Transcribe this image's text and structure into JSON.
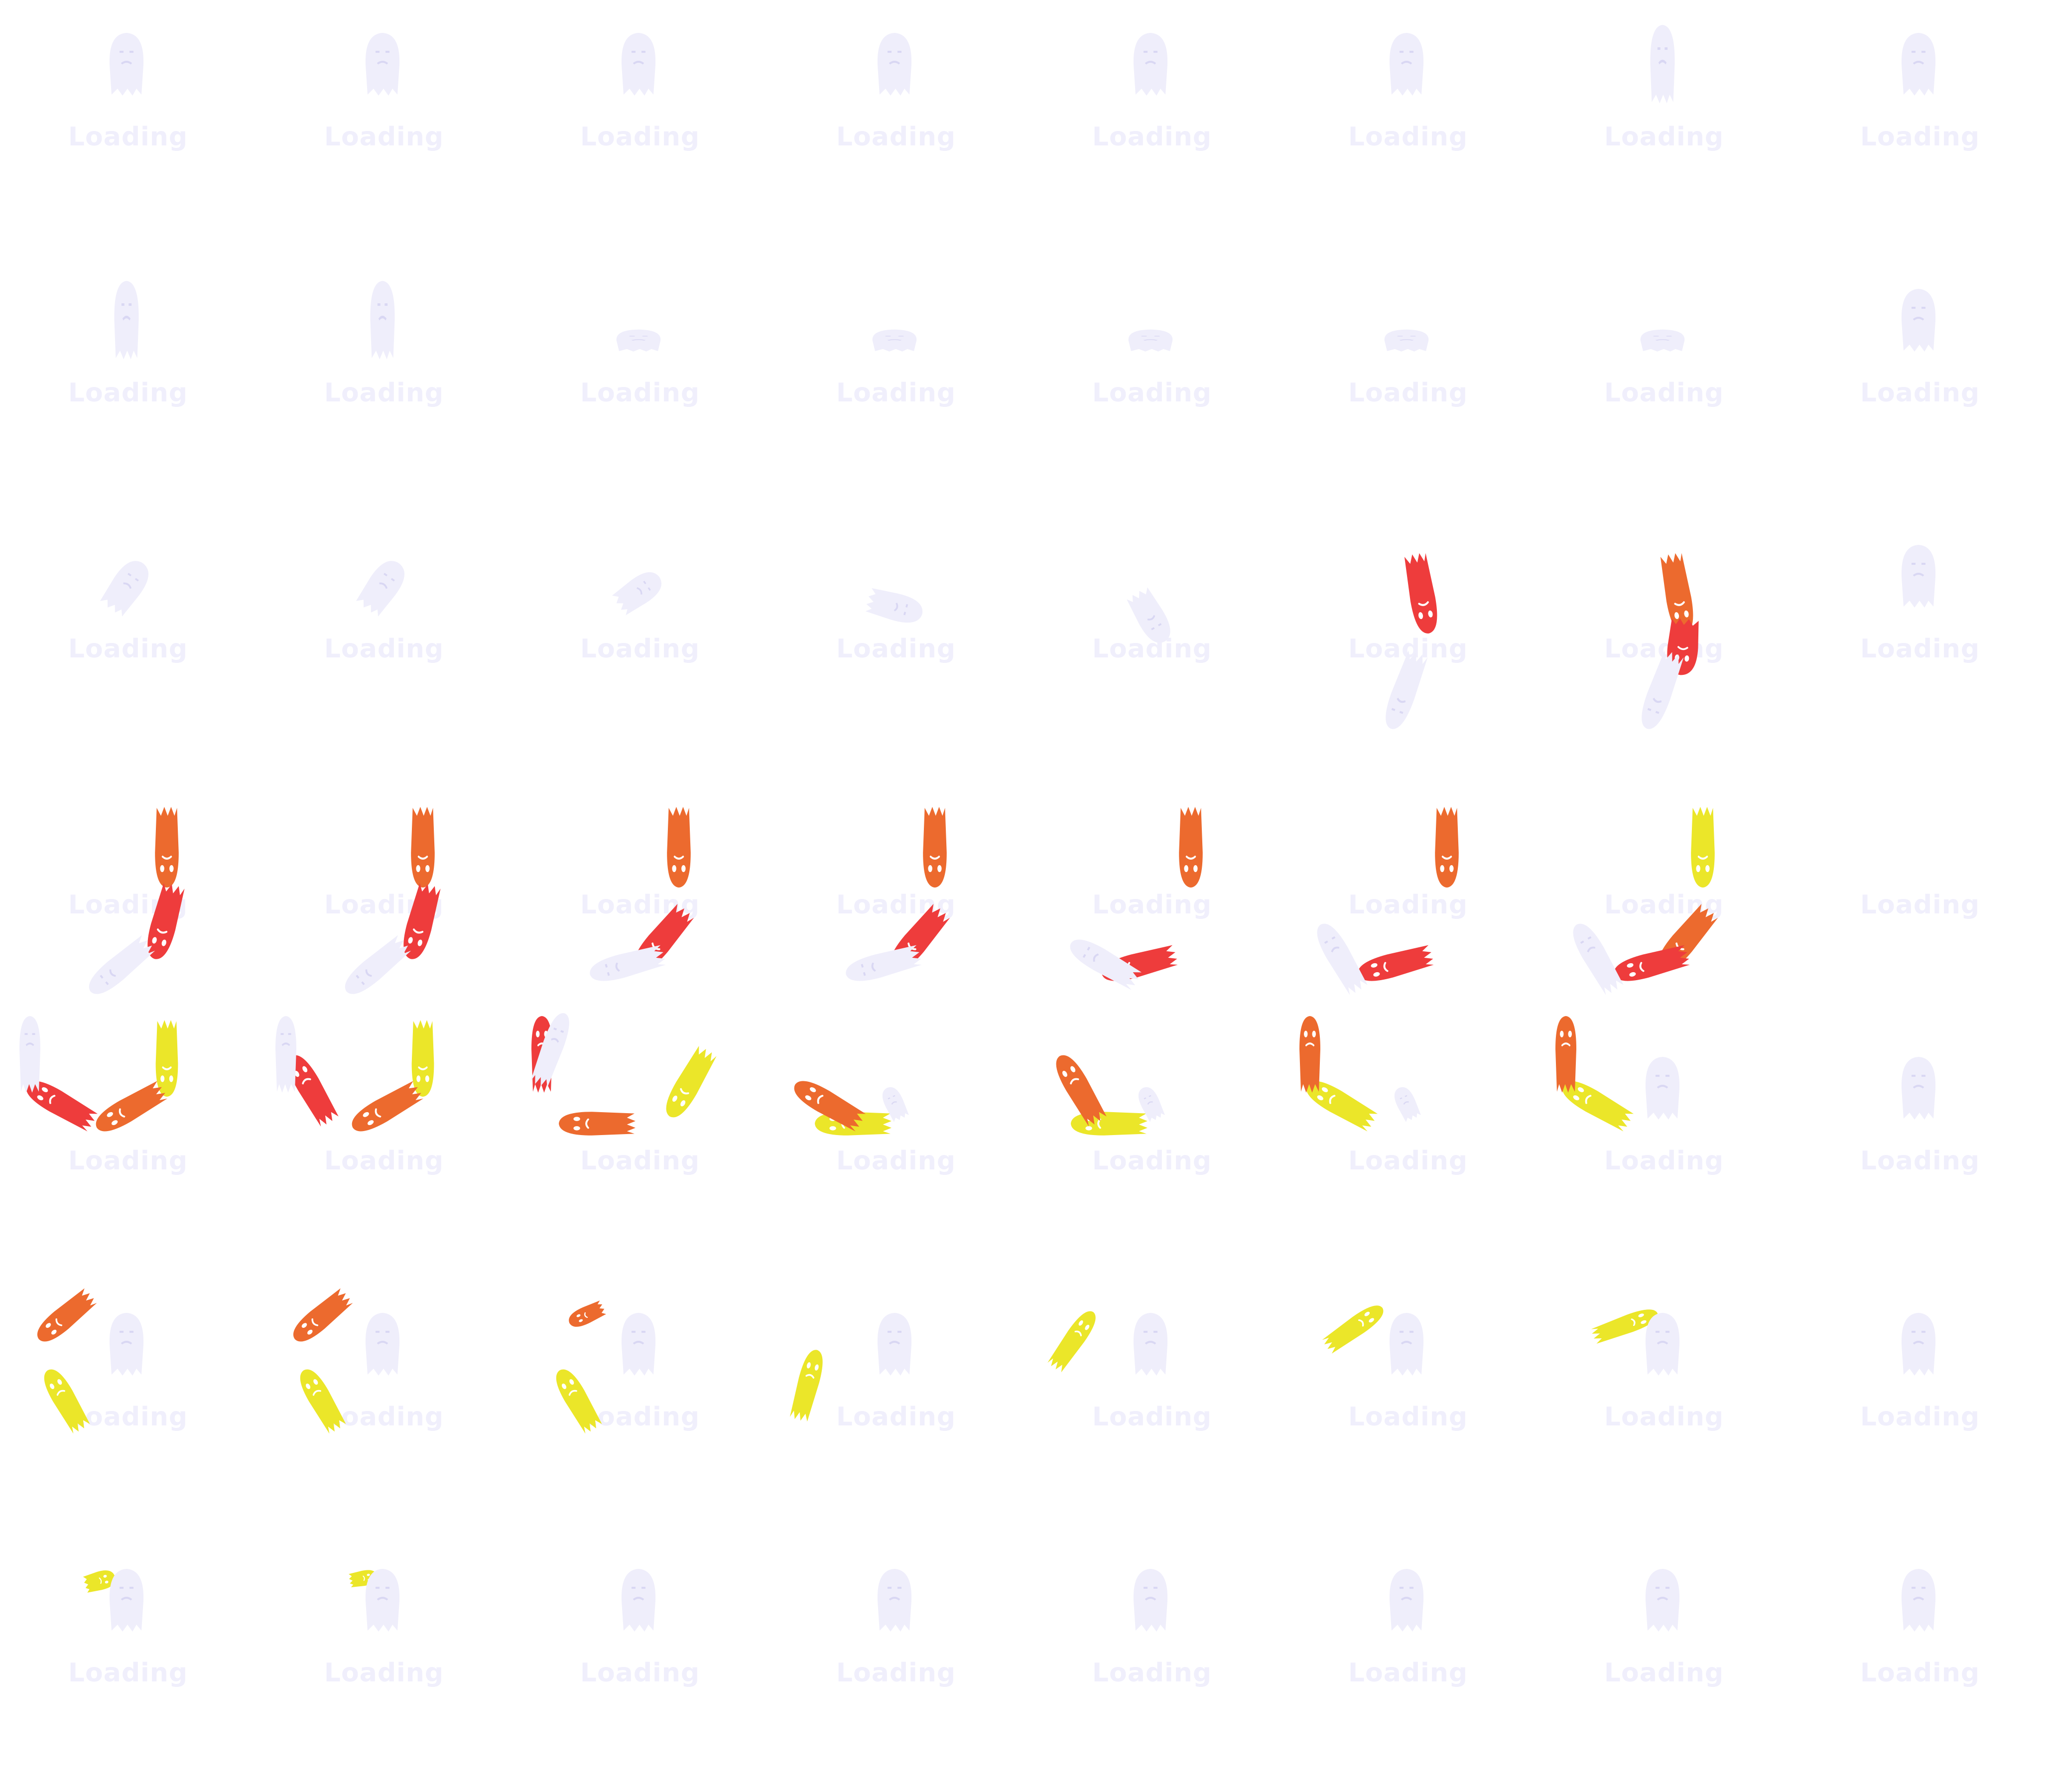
{
  "sprite_sheet": {
    "columns": 8,
    "rows": 7,
    "frame_count": 56,
    "loading_text": "Loading",
    "colors": {
      "background": "#ffffff",
      "ghost_pale": "#efeefb",
      "ghost_red": "#ee3c3c",
      "ghost_orange": "#ec6a2e",
      "ghost_yellow": "#ebe629",
      "face": "#ffffff"
    },
    "icon": "ghost-icon",
    "frames": [
      {
        "n": 1,
        "label": "Loading",
        "ghosts": [
          [
            "p",
            "u"
          ]
        ]
      },
      {
        "n": 2,
        "label": "Loading",
        "ghosts": [
          [
            "p",
            "u"
          ]
        ]
      },
      {
        "n": 3,
        "label": "Loading",
        "ghosts": [
          [
            "p",
            "u"
          ]
        ]
      },
      {
        "n": 4,
        "label": "Loading",
        "ghosts": [
          [
            "p",
            "u"
          ]
        ]
      },
      {
        "n": 5,
        "label": "Loading",
        "ghosts": [
          [
            "p",
            "u"
          ]
        ]
      },
      {
        "n": 6,
        "label": "Loading",
        "ghosts": [
          [
            "p",
            "u"
          ]
        ]
      },
      {
        "n": 7,
        "label": "Loading",
        "ghosts": [
          [
            "p",
            "tall"
          ]
        ]
      },
      {
        "n": 8,
        "label": "Loading",
        "ghosts": [
          [
            "p",
            "u"
          ]
        ]
      },
      {
        "n": 9,
        "label": "Loading",
        "ghosts": [
          [
            "p",
            "tall"
          ]
        ]
      },
      {
        "n": 10,
        "label": "Loading",
        "ghosts": [
          [
            "p",
            "tall"
          ]
        ]
      },
      {
        "n": 11,
        "label": "Loading",
        "ghosts": [
          [
            "p",
            "flat"
          ]
        ]
      },
      {
        "n": 12,
        "label": "Loading",
        "ghosts": [
          [
            "p",
            "flat"
          ]
        ]
      },
      {
        "n": 13,
        "label": "Loading",
        "ghosts": [
          [
            "p",
            "flat"
          ]
        ]
      },
      {
        "n": 14,
        "label": "Loading",
        "ghosts": [
          [
            "p",
            "flat"
          ]
        ]
      },
      {
        "n": 15,
        "label": "Loading",
        "ghosts": [
          [
            "p",
            "flat"
          ]
        ]
      },
      {
        "n": 16,
        "label": "Loading",
        "ghosts": [
          [
            "p",
            "u"
          ]
        ]
      },
      {
        "n": 17,
        "label": "Loading",
        "ghosts": [
          [
            "p",
            "tilt"
          ]
        ]
      },
      {
        "n": 18,
        "label": "Loading",
        "ghosts": [
          [
            "p",
            "tilt"
          ]
        ]
      },
      {
        "n": 19,
        "label": "Loading",
        "ghosts": [
          [
            "p",
            "tilt2"
          ]
        ]
      },
      {
        "n": 20,
        "label": "Loading",
        "ghosts": [
          [
            "p",
            "side"
          ]
        ]
      },
      {
        "n": 21,
        "label": "Loading",
        "ghosts": [
          [
            "p",
            "side2"
          ]
        ]
      },
      {
        "n": 22,
        "label": "Loading",
        "ghosts": [
          [
            "r",
            "arcA"
          ],
          [
            "p",
            "arcB"
          ]
        ]
      },
      {
        "n": 23,
        "label": "Loading",
        "ghosts": [
          [
            "o",
            "arcA"
          ],
          [
            "r",
            "arcA2"
          ],
          [
            "p",
            "arcB"
          ]
        ]
      },
      {
        "n": 24,
        "label": "Loading",
        "ghosts": [
          [
            "p",
            "u"
          ]
        ]
      },
      {
        "n": 25,
        "label": "Loading",
        "ghosts": [
          [
            "o",
            "c1"
          ],
          [
            "r",
            "c2"
          ],
          [
            "p",
            "c4"
          ]
        ]
      },
      {
        "n": 26,
        "label": "Loading",
        "ghosts": [
          [
            "o",
            "c1"
          ],
          [
            "r",
            "c2"
          ],
          [
            "p",
            "c4"
          ]
        ]
      },
      {
        "n": 27,
        "label": "Loading",
        "ghosts": [
          [
            "o",
            "c1"
          ],
          [
            "r",
            "c3"
          ],
          [
            "p",
            "c5"
          ]
        ]
      },
      {
        "n": 28,
        "label": "Loading",
        "ghosts": [
          [
            "o",
            "c1"
          ],
          [
            "r",
            "c3"
          ],
          [
            "p",
            "c5"
          ]
        ]
      },
      {
        "n": 29,
        "label": "Loading",
        "ghosts": [
          [
            "o",
            "c1"
          ],
          [
            "r",
            "c5"
          ],
          [
            "p",
            "c6"
          ]
        ]
      },
      {
        "n": 30,
        "label": "Loading",
        "ghosts": [
          [
            "o",
            "c1"
          ],
          [
            "r",
            "c5"
          ],
          [
            "p",
            "c7"
          ]
        ]
      },
      {
        "n": 31,
        "label": "Loading",
        "ghosts": [
          [
            "y",
            "c1"
          ],
          [
            "o",
            "c3"
          ],
          [
            "r",
            "c5"
          ],
          [
            "p",
            "c7"
          ]
        ]
      },
      {
        "n": 32,
        "label": "Loading",
        "ghosts": [
          [
            "u",
            "blank"
          ]
        ]
      },
      {
        "n": 33,
        "label": "Loading",
        "ghosts": [
          [
            "y",
            "d1"
          ],
          [
            "o",
            "d3"
          ],
          [
            "r",
            "d5"
          ],
          [
            "p",
            "d7"
          ]
        ]
      },
      {
        "n": 34,
        "label": "Loading",
        "ghosts": [
          [
            "y",
            "d1"
          ],
          [
            "o",
            "d3"
          ],
          [
            "r",
            "d6"
          ],
          [
            "p",
            "d7"
          ]
        ]
      },
      {
        "n": 35,
        "label": "Loading",
        "ghosts": [
          [
            "y",
            "d2"
          ],
          [
            "o",
            "d4"
          ],
          [
            "r",
            "d7"
          ],
          [
            "p",
            "d8"
          ]
        ]
      },
      {
        "n": 36,
        "label": "Loading",
        "ghosts": [
          [
            "y",
            "d4"
          ],
          [
            "o",
            "d5"
          ],
          [
            "p",
            "small"
          ]
        ]
      },
      {
        "n": 37,
        "label": "Loading",
        "ghosts": [
          [
            "y",
            "d4"
          ],
          [
            "o",
            "d6"
          ],
          [
            "p",
            "small"
          ]
        ]
      },
      {
        "n": 38,
        "label": "Loading",
        "ghosts": [
          [
            "y",
            "d5"
          ],
          [
            "o",
            "d7"
          ],
          [
            "p",
            "small"
          ]
        ]
      },
      {
        "n": 39,
        "label": "Loading",
        "ghosts": [
          [
            "y",
            "d5"
          ],
          [
            "o",
            "d7"
          ],
          [
            "p",
            "u"
          ]
        ]
      },
      {
        "n": 40,
        "label": "Loading",
        "ghosts": [
          [
            "p",
            "u"
          ]
        ]
      },
      {
        "n": 41,
        "label": "Loading",
        "ghosts": [
          [
            "o",
            "e1"
          ],
          [
            "y",
            "e2"
          ],
          [
            "p",
            "u"
          ]
        ]
      },
      {
        "n": 42,
        "label": "Loading",
        "ghosts": [
          [
            "o",
            "e1"
          ],
          [
            "y",
            "e2"
          ],
          [
            "p",
            "u"
          ]
        ]
      },
      {
        "n": 43,
        "label": "Loading",
        "ghosts": [
          [
            "o",
            "e1s"
          ],
          [
            "y",
            "e2"
          ],
          [
            "p",
            "u"
          ]
        ]
      },
      {
        "n": 44,
        "label": "Loading",
        "ghosts": [
          [
            "y",
            "e3"
          ],
          [
            "p",
            "u"
          ]
        ]
      },
      {
        "n": 45,
        "label": "Loading",
        "ghosts": [
          [
            "y",
            "e4"
          ],
          [
            "p",
            "u"
          ]
        ]
      },
      {
        "n": 46,
        "label": "Loading",
        "ghosts": [
          [
            "y",
            "e5"
          ],
          [
            "p",
            "u"
          ]
        ]
      },
      {
        "n": 47,
        "label": "Loading",
        "ghosts": [
          [
            "y",
            "e6"
          ],
          [
            "p",
            "u"
          ]
        ]
      },
      {
        "n": 48,
        "label": "Loading",
        "ghosts": [
          [
            "p",
            "u"
          ]
        ]
      },
      {
        "n": 49,
        "label": "Loading",
        "ghosts": [
          [
            "y",
            "f1"
          ],
          [
            "p",
            "u"
          ]
        ]
      },
      {
        "n": 50,
        "label": "Loading",
        "ghosts": [
          [
            "y",
            "f2"
          ],
          [
            "p",
            "u"
          ]
        ]
      },
      {
        "n": 51,
        "label": "Loading",
        "ghosts": [
          [
            "p",
            "u"
          ]
        ]
      },
      {
        "n": 52,
        "label": "Loading",
        "ghosts": [
          [
            "p",
            "u"
          ]
        ]
      },
      {
        "n": 53,
        "label": "Loading",
        "ghosts": [
          [
            "p",
            "u"
          ]
        ]
      },
      {
        "n": 54,
        "label": "Loading",
        "ghosts": [
          [
            "p",
            "u"
          ]
        ]
      },
      {
        "n": 55,
        "label": "Loading",
        "ghosts": [
          [
            "p",
            "u"
          ]
        ]
      },
      {
        "n": 56,
        "label": "Loading",
        "ghosts": [
          [
            "p",
            "u"
          ]
        ]
      }
    ]
  }
}
